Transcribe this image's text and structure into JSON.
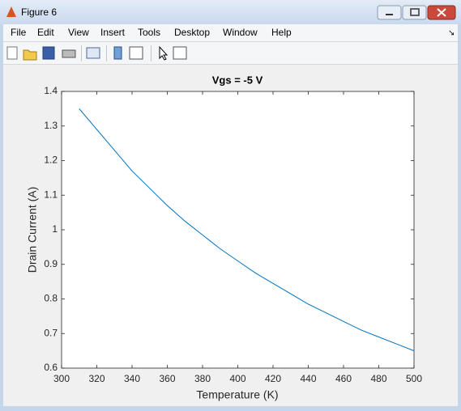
{
  "window": {
    "title": "Figure 6"
  },
  "menu": [
    "File",
    "Edit",
    "View",
    "Insert",
    "Tools",
    "Desktop",
    "Window",
    "Help"
  ],
  "chart_data": {
    "type": "line",
    "title": "Vgs = -5 V",
    "x_label": "Temperature (K)",
    "y_label": "Drain Current (A)",
    "x": [
      310,
      320,
      330,
      340,
      350,
      360,
      370,
      380,
      390,
      400,
      410,
      420,
      430,
      440,
      450,
      460,
      470,
      480,
      490,
      500
    ],
    "values": [
      1.35,
      1.29,
      1.23,
      1.17,
      1.12,
      1.07,
      1.025,
      0.985,
      0.945,
      0.91,
      0.875,
      0.845,
      0.815,
      0.785,
      0.76,
      0.735,
      0.71,
      0.69,
      0.67,
      0.65
    ],
    "color": "#0072bd",
    "xlim": [
      300,
      500
    ],
    "xticks": [
      300,
      320,
      340,
      360,
      380,
      400,
      420,
      440,
      460,
      480,
      500
    ],
    "ylim": [
      0.6,
      1.4
    ],
    "yticks": [
      0.6,
      0.7,
      0.8,
      0.9,
      1,
      1.1,
      1.2,
      1.3,
      1.4
    ],
    "grid": false
  }
}
